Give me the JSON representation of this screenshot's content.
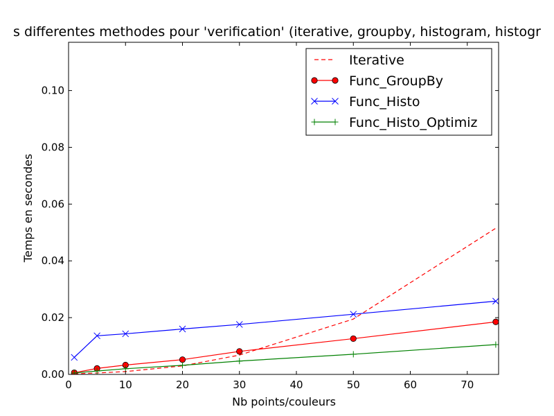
{
  "chart_data": {
    "type": "line",
    "title": "s differentes methodes pour 'verification' (iterative, groupby, histogram, histogr",
    "xlabel": "Nb points/couleurs",
    "ylabel": "Temps en secondes",
    "xlim": [
      0,
      75.5
    ],
    "ylim": [
      0,
      0.117
    ],
    "xticks": [
      0,
      10,
      20,
      30,
      40,
      50,
      60,
      70
    ],
    "yticks": [
      0.0,
      0.02,
      0.04,
      0.06,
      0.08,
      0.1
    ],
    "xtick_labels": [
      "0",
      "10",
      "20",
      "30",
      "40",
      "50",
      "60",
      "70"
    ],
    "ytick_labels": [
      "0.00",
      "0.02",
      "0.04",
      "0.06",
      "0.08",
      "0.10"
    ],
    "grid": false,
    "legend_position": "top-right",
    "x": [
      1,
      5,
      10,
      20,
      30,
      50,
      75
    ],
    "series": [
      {
        "name": "Iterative",
        "color": "#ff0000",
        "line_style": "dashed",
        "marker": "none",
        "values": [
          0.0002,
          0.0005,
          0.001,
          0.003,
          0.0068,
          0.0195,
          0.0515
        ]
      },
      {
        "name": "Func_GroupBy",
        "color": "#ff0000",
        "line_style": "solid",
        "marker": "circle",
        "values": [
          0.0006,
          0.0021,
          0.0033,
          0.0052,
          0.0081,
          0.0126,
          0.0185
        ]
      },
      {
        "name": "Func_Histo",
        "color": "#0000ff",
        "line_style": "solid",
        "marker": "x",
        "values": [
          0.006,
          0.0136,
          0.0143,
          0.016,
          0.0176,
          0.0212,
          0.0258
        ]
      },
      {
        "name": "Func_Histo_Optimiz",
        "color": "#008000",
        "line_style": "solid",
        "marker": "plus",
        "values": [
          0.0005,
          0.0012,
          0.002,
          0.0032,
          0.0047,
          0.0071,
          0.0105
        ]
      }
    ]
  }
}
